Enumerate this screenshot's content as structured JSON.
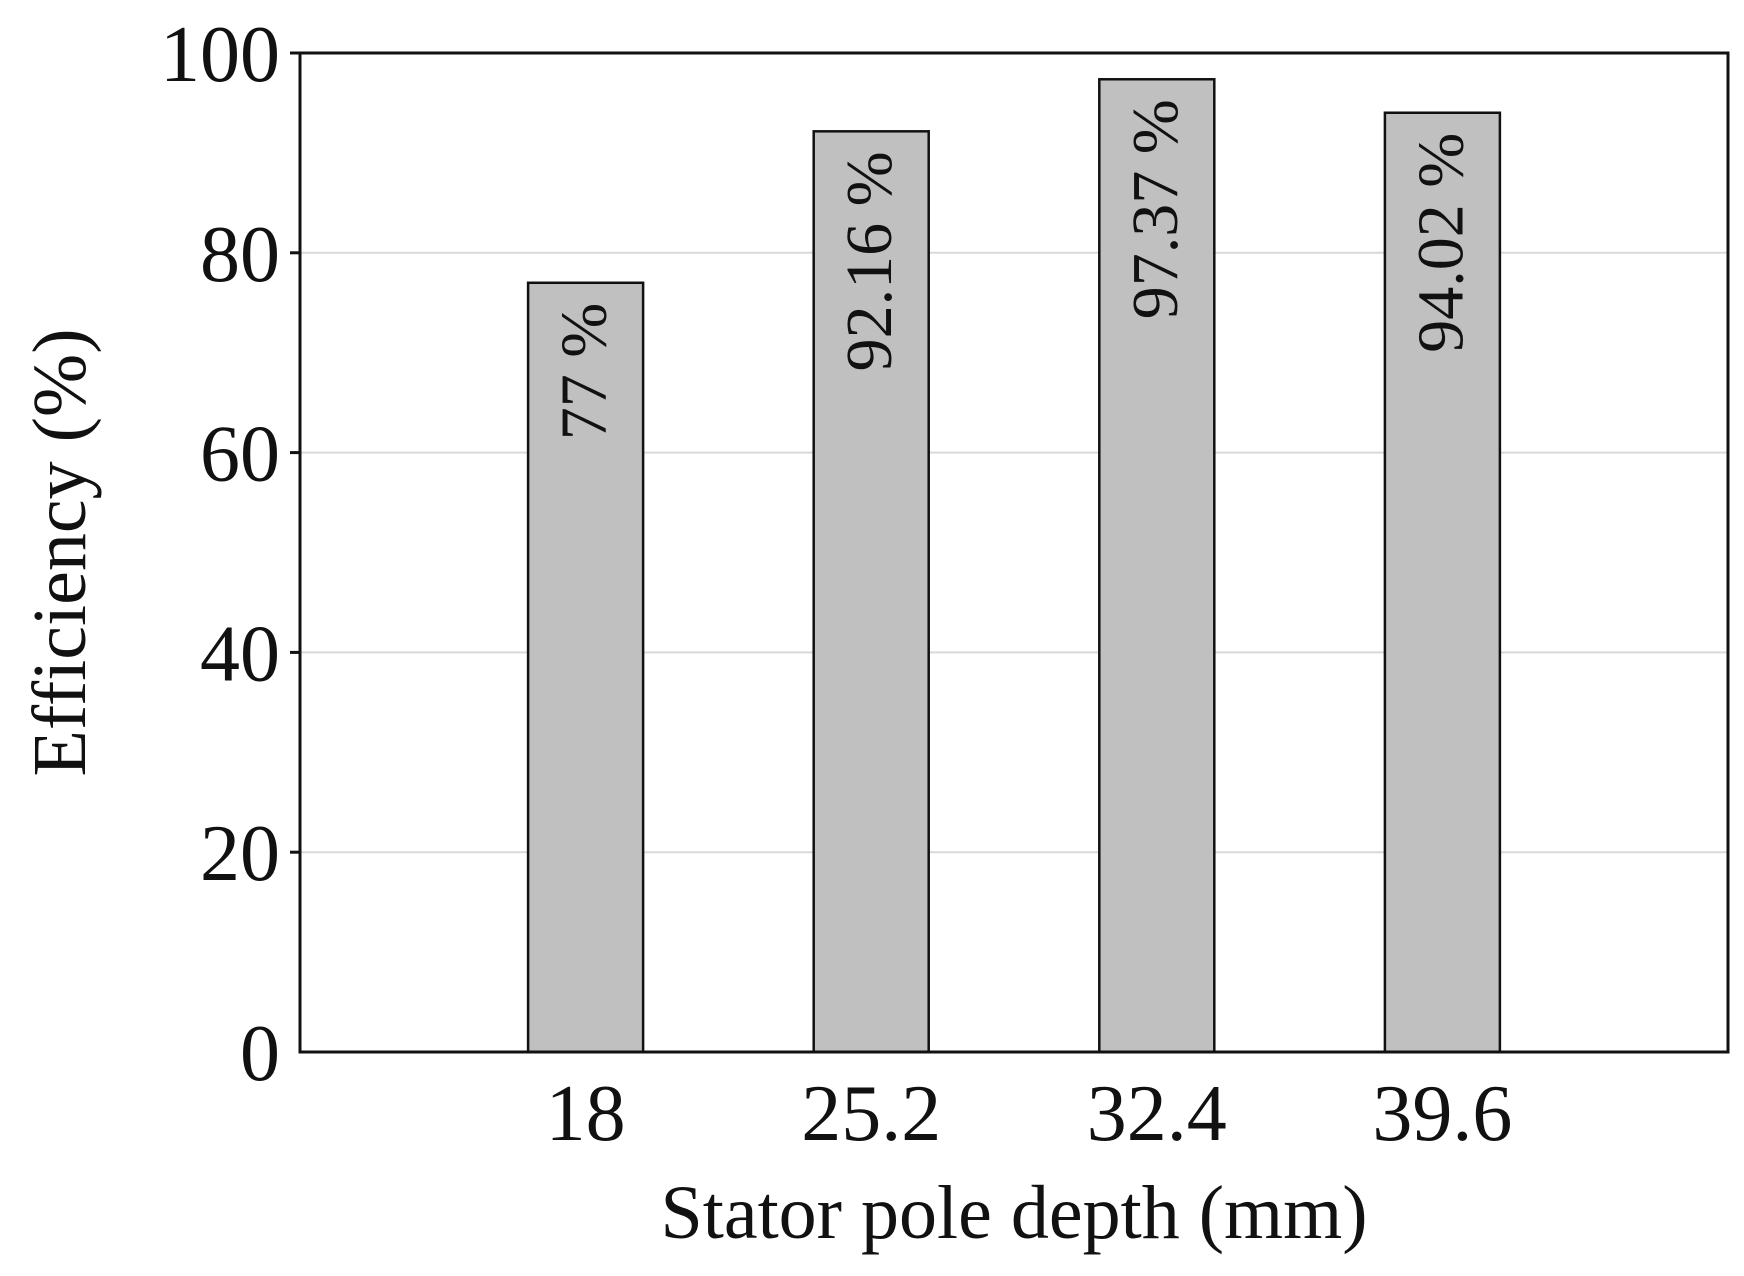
{
  "chart_data": {
    "type": "bar",
    "categories": [
      "18",
      "25.2",
      "32.4",
      "39.6"
    ],
    "values": [
      77,
      92.16,
      97.37,
      94.02
    ],
    "data_labels": [
      "77 %",
      "92.16 %",
      "97.37 %",
      "94.02 %"
    ],
    "title": "",
    "xlabel": "Stator pole depth (mm)",
    "ylabel": "Efficiency (%)",
    "ylim": [
      0,
      100
    ],
    "yticks": [
      "0",
      "20",
      "40",
      "60",
      "80",
      "100"
    ],
    "grid": "horizontal",
    "bar_color": "#c0c0c0",
    "grid_color": "#d9d9d9"
  }
}
